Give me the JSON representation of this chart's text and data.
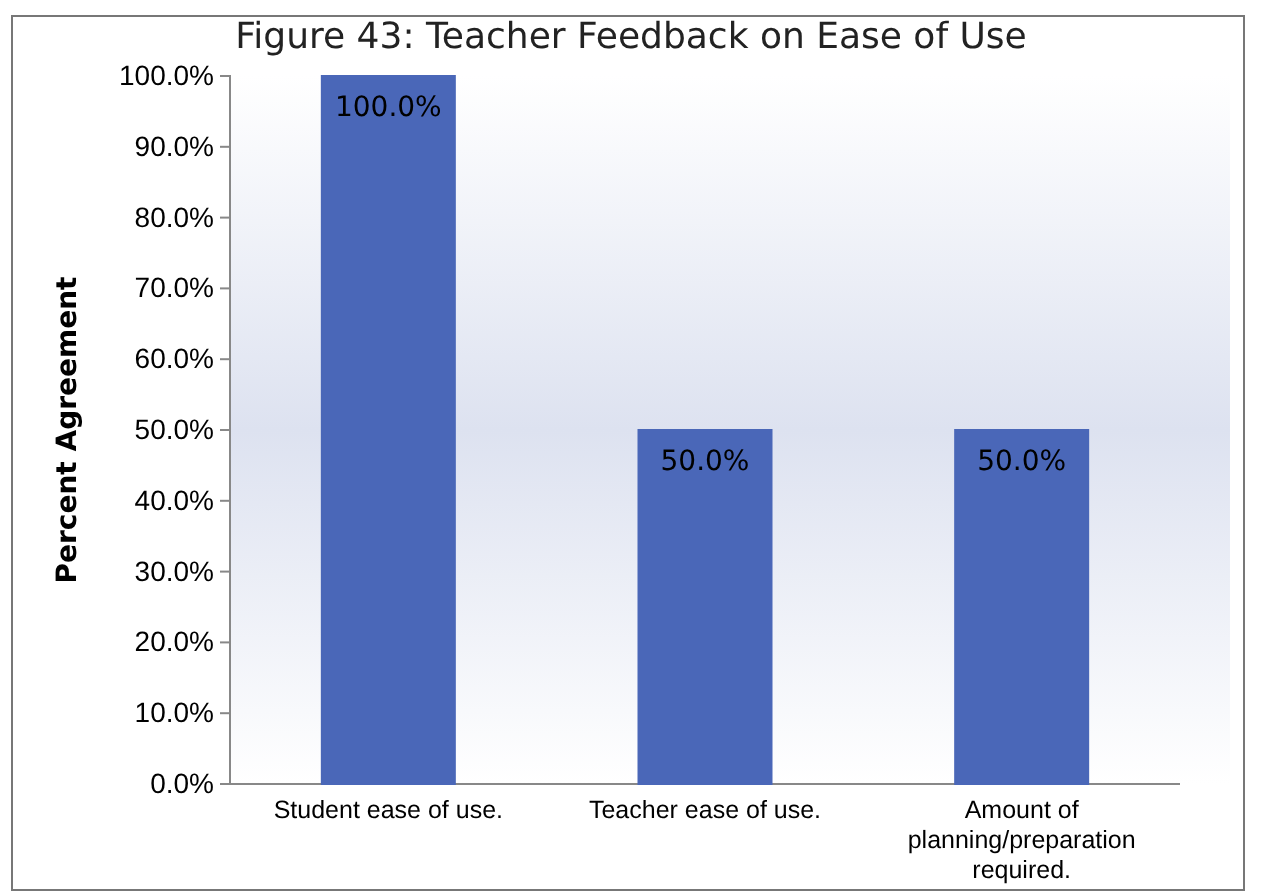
{
  "chart_data": {
    "type": "bar",
    "title": "Figure 43: Teacher Feedback on Ease of Use",
    "ylabel": "Percent Agreement",
    "categories": [
      "Student ease of use.",
      "Teacher ease of use.",
      "Amount of planning/preparation required."
    ],
    "values": [
      100,
      50,
      50
    ],
    "color": "#4a67b8",
    "ylim": [
      0,
      100
    ],
    "yticks": [
      {
        "value": 0,
        "label": "0.0%"
      },
      {
        "value": 10,
        "label": "10.0%"
      },
      {
        "value": 20,
        "label": "20.0%"
      },
      {
        "value": 30,
        "label": "30.0%"
      },
      {
        "value": 40,
        "label": "40.0%"
      },
      {
        "value": 50,
        "label": "50.0%"
      },
      {
        "value": 60,
        "label": "60.0%"
      },
      {
        "value": 70,
        "label": "70.0%"
      },
      {
        "value": 80,
        "label": "80.0%"
      },
      {
        "value": 90,
        "label": "90.0%"
      },
      {
        "value": 100,
        "label": "100.0%"
      }
    ],
    "value_labels": [
      "100.0%",
      "50.0%",
      "50.0%"
    ]
  }
}
